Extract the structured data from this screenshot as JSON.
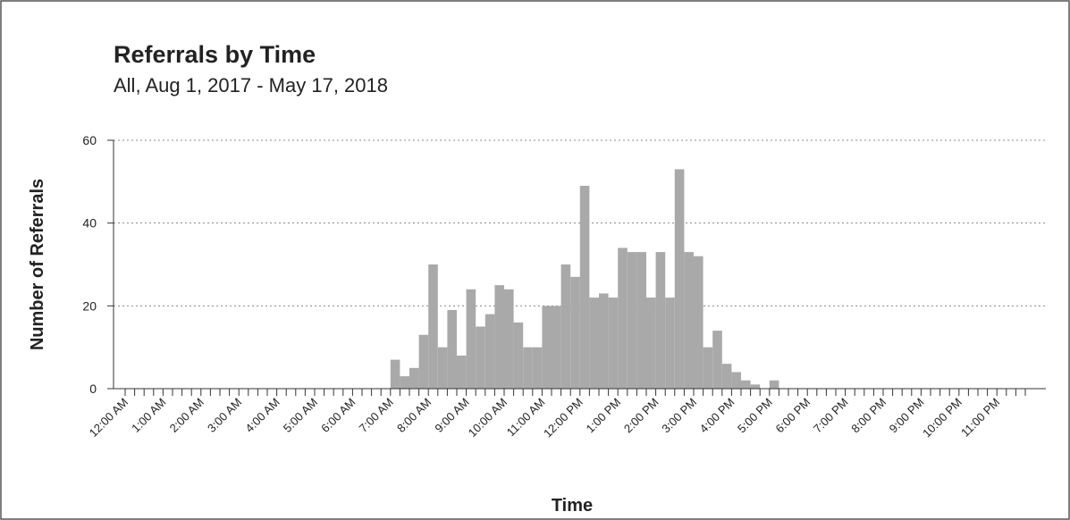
{
  "chart_data": {
    "type": "bar",
    "title": "Referrals by Time",
    "subtitle": "All, Aug 1, 2017 - May 17, 2018",
    "x_label": "Time",
    "y_label": "Number of Referrals",
    "categories": [
      "12:00 AM",
      null,
      null,
      null,
      "1:00 AM",
      null,
      null,
      null,
      "2:00 AM",
      null,
      null,
      null,
      "3:00 AM",
      null,
      null,
      null,
      "4:00 AM",
      null,
      null,
      null,
      "5:00 AM",
      null,
      null,
      null,
      "6:00 AM",
      null,
      null,
      null,
      "7:00 AM",
      null,
      null,
      null,
      "8:00 AM",
      null,
      null,
      null,
      "9:00 AM",
      null,
      null,
      null,
      "10:00 AM",
      null,
      null,
      null,
      "11:00 AM",
      null,
      null,
      null,
      "12:00 PM",
      null,
      null,
      null,
      "1:00 PM",
      null,
      null,
      null,
      "2:00 PM",
      null,
      null,
      null,
      "3:00 PM",
      null,
      null,
      null,
      "4:00 PM",
      null,
      null,
      null,
      "5:00 PM",
      null,
      null,
      null,
      "6:00 PM",
      null,
      null,
      null,
      "7:00 PM",
      null,
      null,
      null,
      "8:00 PM",
      null,
      null,
      null,
      "9:00 PM",
      null,
      null,
      null,
      "10:00 PM",
      null,
      null,
      null,
      "11:00 PM",
      null,
      null,
      null
    ],
    "values": [
      0,
      0,
      0,
      0,
      0,
      0,
      0,
      0,
      0,
      0,
      0,
      0,
      0,
      0,
      0,
      0,
      0,
      0,
      0,
      0,
      0,
      0,
      0,
      0,
      0,
      0,
      0,
      0,
      7,
      3,
      5,
      13,
      30,
      10,
      19,
      8,
      24,
      15,
      18,
      25,
      24,
      16,
      10,
      10,
      20,
      20,
      30,
      27,
      49,
      22,
      23,
      22,
      34,
      33,
      33,
      22,
      33,
      22,
      53,
      33,
      32,
      10,
      14,
      6,
      4,
      2,
      1,
      0,
      2,
      0,
      0,
      0,
      0,
      0,
      0,
      0,
      0,
      0,
      0,
      0,
      0,
      0,
      0,
      0,
      0,
      0,
      0,
      0,
      0,
      0,
      0,
      0,
      0,
      0,
      0,
      0
    ],
    "color": "#a9a9a9",
    "ylim": [
      0,
      60
    ],
    "yticks": [
      0,
      20,
      40,
      60
    ],
    "grid": true
  }
}
